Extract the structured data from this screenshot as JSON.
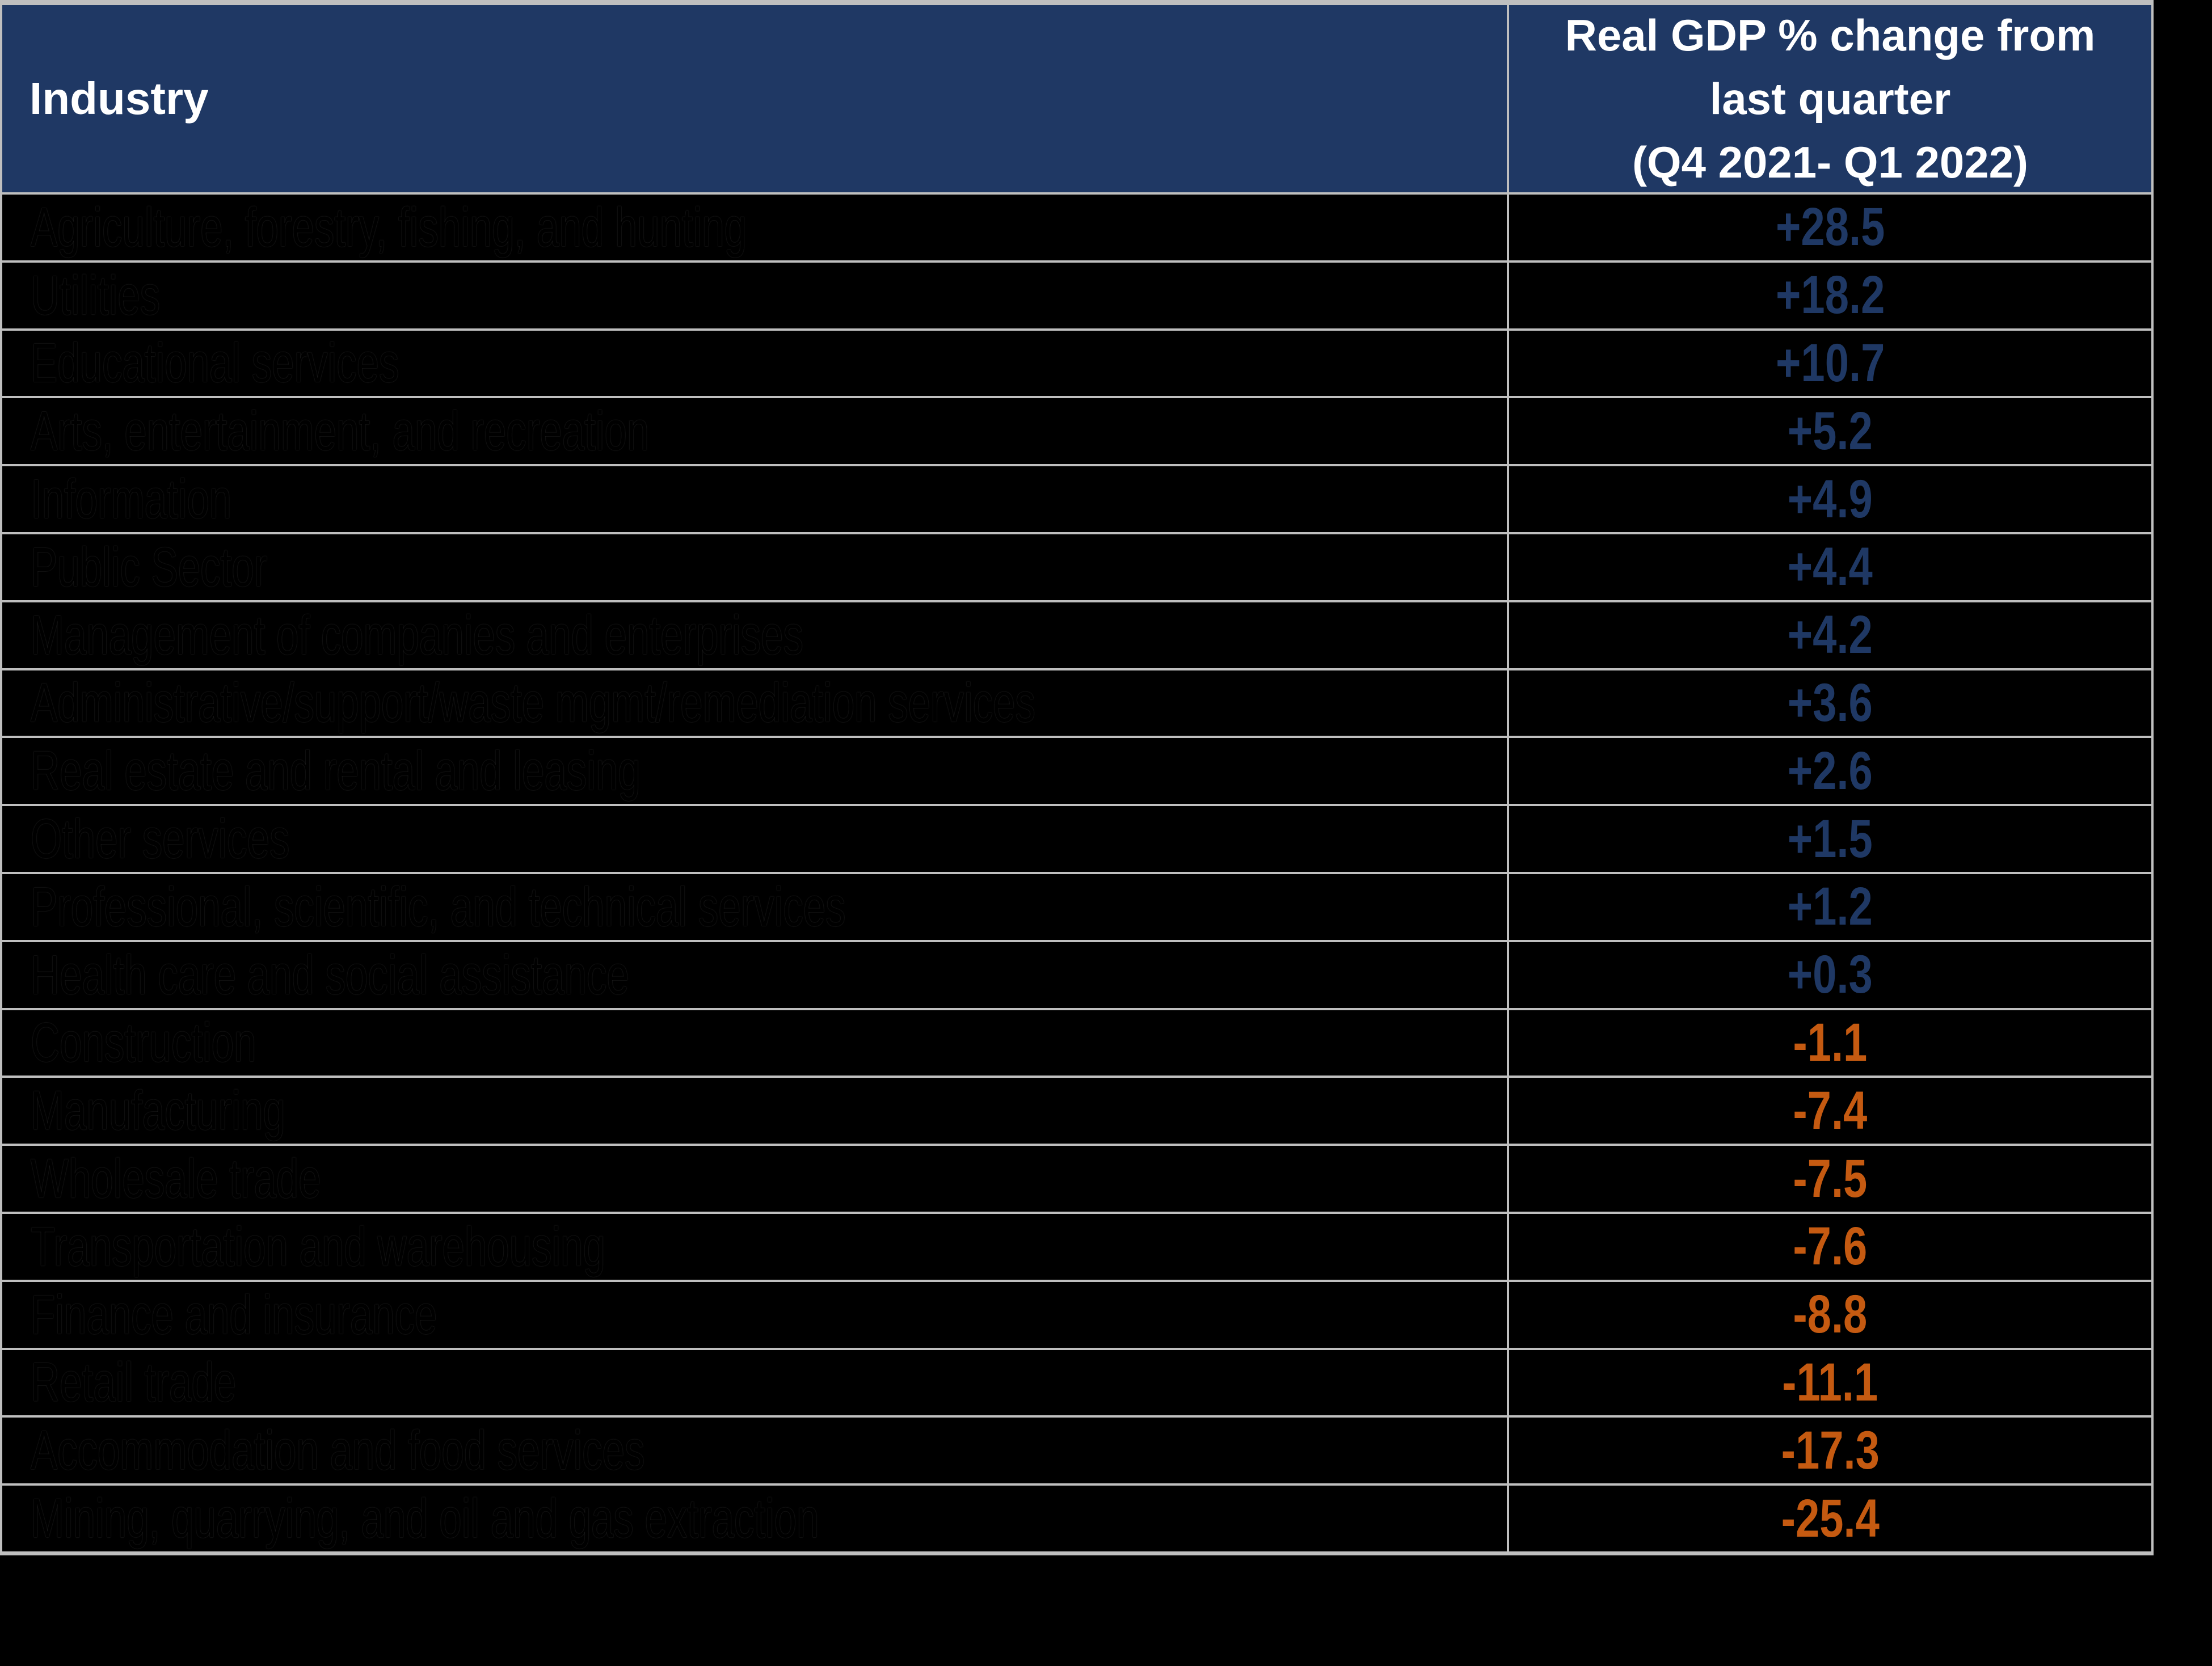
{
  "colors": {
    "background": "#000000",
    "header_bg": "#1f3864",
    "header_text": "#ffffff",
    "border": "#bfbfbf",
    "row_label_text": "#000000",
    "positive_value": "#1f3864",
    "negative_value": "#c55a11"
  },
  "table": {
    "header": {
      "industry": "Industry",
      "gdp": "Real GDP % change from\nlast quarter\n(Q4 2021- Q1 2022)"
    },
    "rows": [
      {
        "industry": "Agriculture, forestry, fishing, and hunting",
        "value": "+28.5"
      },
      {
        "industry": "Utilities",
        "value": "+18.2"
      },
      {
        "industry": "Educational services",
        "value": "+10.7"
      },
      {
        "industry": "Arts, entertainment, and recreation",
        "value": "+5.2"
      },
      {
        "industry": "Information",
        "value": "+4.9"
      },
      {
        "industry": "Public Sector",
        "value": "+4.4"
      },
      {
        "industry": "Management of companies and enterprises",
        "value": "+4.2"
      },
      {
        "industry": "Administrative/support/waste mgmt/remediation services",
        "value": "+3.6"
      },
      {
        "industry": "Real estate and rental and leasing",
        "value": "+2.6"
      },
      {
        "industry": "Other services",
        "value": "+1.5"
      },
      {
        "industry": "Professional, scientific, and technical services",
        "value": "+1.2"
      },
      {
        "industry": "Health care and social assistance",
        "value": "+0.3"
      },
      {
        "industry": "Construction",
        "value": "-1.1"
      },
      {
        "industry": "Manufacturing",
        "value": "-7.4"
      },
      {
        "industry": "Wholesale trade",
        "value": "-7.5"
      },
      {
        "industry": "Transportation and warehousing",
        "value": "-7.6"
      },
      {
        "industry": "Finance and insurance",
        "value": "-8.8"
      },
      {
        "industry": "Retail trade",
        "value": "-11.1"
      },
      {
        "industry": "Accommodation and food services",
        "value": "-17.3"
      },
      {
        "industry": "Mining, quarrying, and oil and gas extraction",
        "value": "-25.4"
      }
    ]
  },
  "chart_data": {
    "type": "table",
    "columns": [
      "Industry",
      "Real GDP % change from last quarter (Q4 2021- Q1 2022)"
    ],
    "rows": [
      [
        "Agriculture, forestry, fishing, and hunting",
        28.5
      ],
      [
        "Utilities",
        18.2
      ],
      [
        "Educational services",
        10.7
      ],
      [
        "Arts, entertainment, and recreation",
        5.2
      ],
      [
        "Information",
        4.9
      ],
      [
        "Public Sector",
        4.4
      ],
      [
        "Management of companies and enterprises",
        4.2
      ],
      [
        "Administrative/support/waste mgmt/remediation services",
        3.6
      ],
      [
        "Real estate and rental and leasing",
        2.6
      ],
      [
        "Other services",
        1.5
      ],
      [
        "Professional, scientific, and technical services",
        1.2
      ],
      [
        "Health care and social assistance",
        0.3
      ],
      [
        "Construction",
        -1.1
      ],
      [
        "Manufacturing",
        -7.4
      ],
      [
        "Wholesale trade",
        -7.5
      ],
      [
        "Transportation and warehousing",
        -7.6
      ],
      [
        "Finance and insurance",
        -8.8
      ],
      [
        "Retail trade",
        -11.1
      ],
      [
        "Accommodation and food services",
        -17.3
      ],
      [
        "Mining, quarrying, and oil and gas extraction",
        -25.4
      ]
    ],
    "layout_hints": {
      "positive_color": "#1f3864",
      "negative_color": "#c55a11",
      "grid": true
    }
  }
}
